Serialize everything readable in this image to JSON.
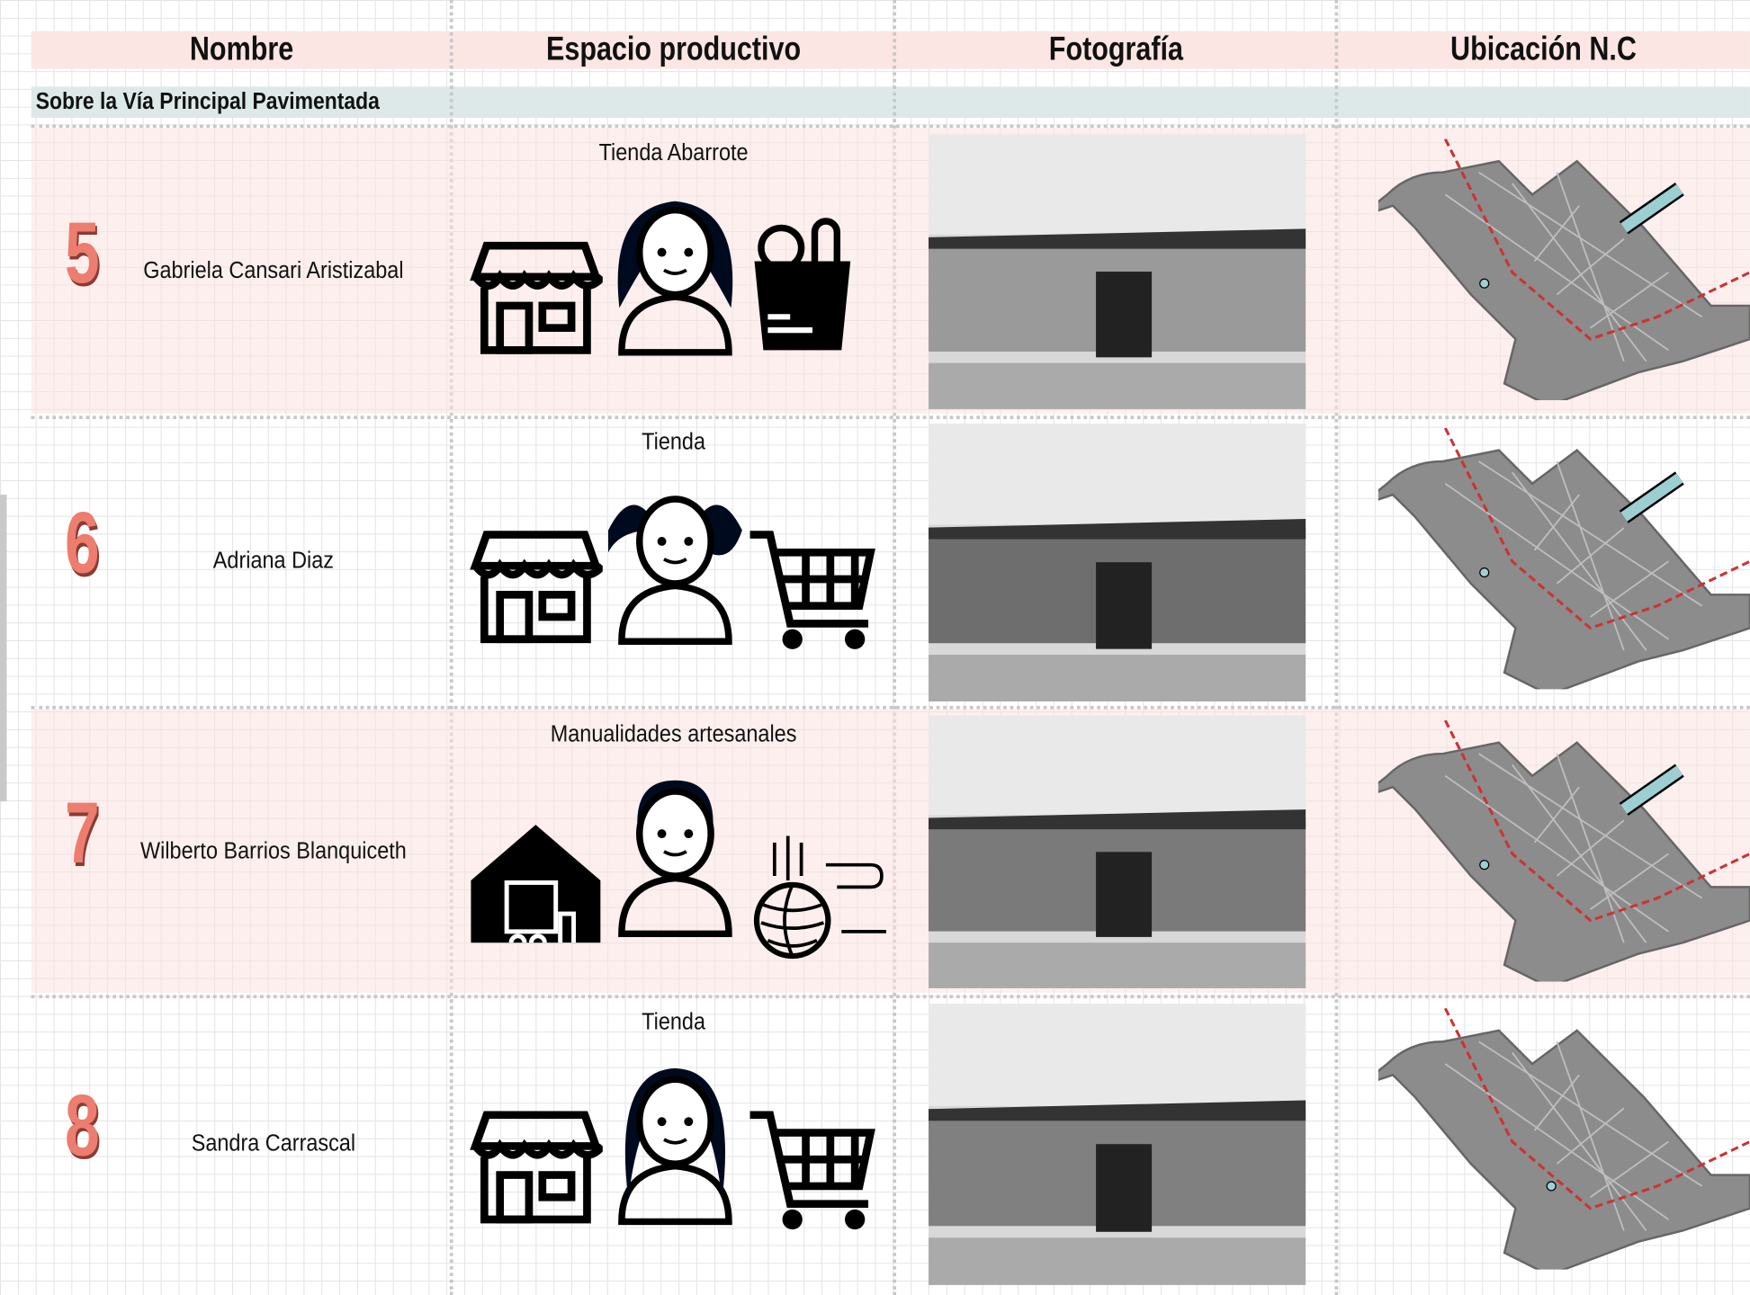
{
  "header": {
    "columns": [
      "Nombre",
      "Espacio productivo",
      "Fotografía",
      "Ubicación N.C"
    ]
  },
  "section": "Sobre la Vía Principal Pavimentada",
  "rows": [
    {
      "number": 5,
      "name": "Gabriela Cansari Aristizabal",
      "activity": "Tienda Abarrote"
    },
    {
      "number": 6,
      "name": "Adriana Diaz",
      "activity": "Tienda"
    },
    {
      "number": 7,
      "name": "Wilberto Barrios Blanquiceth",
      "activity": "Manualidades artesanales"
    },
    {
      "number": 8,
      "name": "Sandra Carrascal",
      "activity": "Tienda"
    }
  ]
}
